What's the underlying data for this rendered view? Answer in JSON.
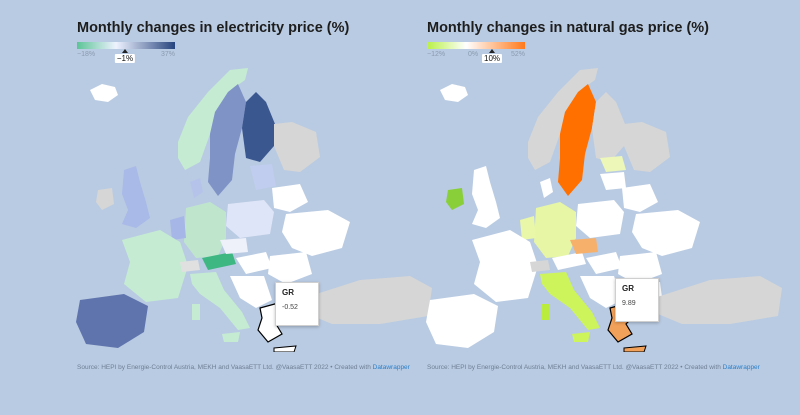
{
  "electricity": {
    "title": "Monthly changes in electricity price (%)",
    "legend": {
      "min_label": "−18%",
      "max_label": "37%",
      "marker_label": "−1%",
      "colors": [
        "#5cc497",
        "#eef2ff",
        "#27457e"
      ]
    },
    "highlight": {
      "code": "GR",
      "value": "-0.52"
    },
    "source_text": "Source: HEPI by Energie-Control Austria, MEKH and VaasaETT Ltd. @VaasaETT 2022 • Created with ",
    "source_link": "Datawrapper"
  },
  "gas": {
    "title": "Monthly changes in natural gas price (%)",
    "legend": {
      "min_label": "−12%",
      "zero_label": "0%",
      "max_label": "52%",
      "marker_label": "10%",
      "colors": [
        "#b9f046",
        "#ffffff",
        "#ff7a1a"
      ]
    },
    "highlight": {
      "code": "GR",
      "value": "9.89"
    },
    "source_text": "Source: HEPI by Energie-Control Austria, MEKH and VaasaETT Ltd. @VaasaETT 2022 • Created with ",
    "source_link": "Datawrapper"
  },
  "colors": {
    "background": "#b9cbe2",
    "no_data": "#d6d6d6",
    "near_zero": "#ffffff"
  }
}
